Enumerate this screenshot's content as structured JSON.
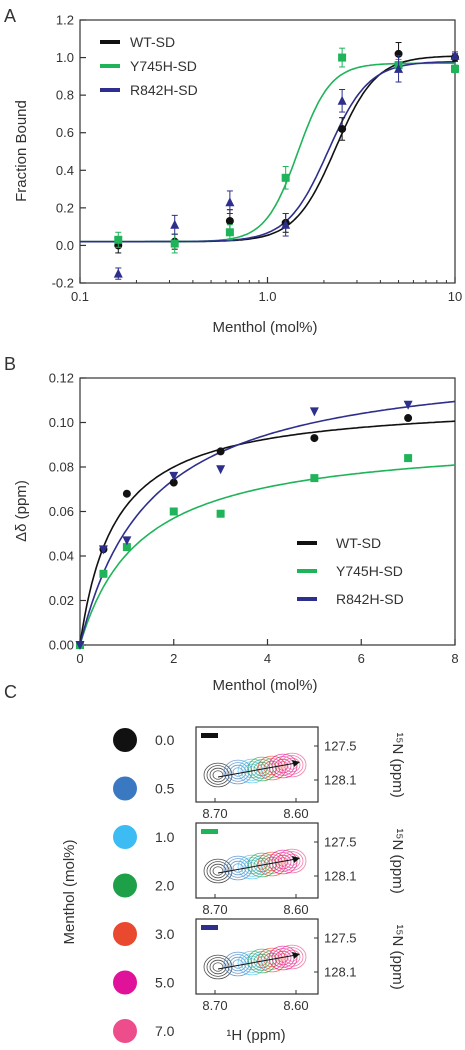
{
  "panels": {
    "a": "A",
    "b": "B",
    "c": "C"
  },
  "colors": {
    "wt": "#111111",
    "y745h": "#1fb35a",
    "r842h": "#2e2e8c"
  },
  "chart_data": [
    {
      "type": "scatter",
      "panel": "A",
      "xlabel": "Menthol (mol%)",
      "ylabel": "Fraction Bound",
      "x_scale": "log",
      "xlim": [
        0.1,
        10
      ],
      "ylim": [
        -0.2,
        1.2
      ],
      "x_ticks": [
        "0.1",
        "1.0",
        "10"
      ],
      "y_ticks": [
        "-0.2",
        "0.0",
        "0.2",
        "0.4",
        "0.6",
        "0.8",
        "1.0",
        "1.2"
      ],
      "legend_position": "top-left",
      "series": [
        {
          "name": "WT-SD",
          "color": "#111111",
          "marker": "circle",
          "x": [
            0.16,
            0.32,
            0.63,
            1.25,
            2.5,
            5.0,
            10.0
          ],
          "y": [
            0.0,
            0.02,
            0.13,
            0.12,
            0.62,
            1.02,
            1.0
          ],
          "err": [
            0.04,
            0.04,
            0.06,
            0.05,
            0.06,
            0.06,
            0.02
          ],
          "fit": {
            "bottom": 0.02,
            "top": 1.01,
            "ec50": 2.3,
            "hill": 4
          }
        },
        {
          "name": "Y745H-SD",
          "color": "#1fb35a",
          "marker": "square",
          "x": [
            0.16,
            0.32,
            0.63,
            1.25,
            2.5,
            5.0,
            10.0
          ],
          "y": [
            0.03,
            0.01,
            0.07,
            0.36,
            1.0,
            0.96,
            0.94
          ],
          "err": [
            0.04,
            0.05,
            0.04,
            0.06,
            0.05,
            0.03,
            0.02
          ],
          "fit": {
            "bottom": 0.02,
            "top": 0.97,
            "ec50": 1.45,
            "hill": 5
          }
        },
        {
          "name": "R842H-SD",
          "color": "#2e2e8c",
          "marker": "triangle",
          "x": [
            0.16,
            0.32,
            0.63,
            1.25,
            2.5,
            5.0,
            10.0
          ],
          "y": [
            -0.15,
            0.11,
            0.23,
            0.11,
            0.77,
            0.94,
            1.01
          ],
          "err": [
            0.03,
            0.05,
            0.06,
            0.06,
            0.06,
            0.07,
            0.02
          ],
          "fit": {
            "bottom": 0.02,
            "top": 0.98,
            "ec50": 2.1,
            "hill": 4
          }
        }
      ]
    },
    {
      "type": "scatter",
      "panel": "B",
      "xlabel": "Menthol (mol%)",
      "ylabel": "Δδ (ppm)",
      "xlim": [
        0,
        8
      ],
      "ylim": [
        0,
        0.12
      ],
      "x_ticks": [
        "0",
        "2",
        "4",
        "6",
        "8"
      ],
      "y_ticks": [
        "0.00",
        "0.02",
        "0.04",
        "0.06",
        "0.08",
        "0.10",
        "0.12"
      ],
      "legend_position": "bottom-right",
      "series": [
        {
          "name": "WT-SD",
          "color": "#111111",
          "marker": "circle",
          "x": [
            0,
            0.5,
            1,
            2,
            3,
            5,
            7
          ],
          "y": [
            0,
            0.043,
            0.068,
            0.073,
            0.087,
            0.093,
            0.102
          ],
          "fit": {
            "bmax": 0.11,
            "kd": 0.75
          }
        },
        {
          "name": "Y745H-SD",
          "color": "#1fb35a",
          "marker": "square",
          "x": [
            0,
            0.5,
            1,
            2,
            3,
            5,
            7
          ],
          "y": [
            0,
            0.032,
            0.044,
            0.06,
            0.059,
            0.075,
            0.084
          ],
          "fit": {
            "bmax": 0.094,
            "kd": 1.3
          }
        },
        {
          "name": "R842H-SD",
          "color": "#2e2e8c",
          "marker": "triangle-down",
          "x": [
            0,
            0.5,
            1,
            2,
            3,
            5,
            7
          ],
          "y": [
            0,
            0.043,
            0.047,
            0.076,
            0.079,
            0.105,
            0.108
          ],
          "fit": {
            "bmax": 0.13,
            "kd": 1.5
          }
        }
      ]
    }
  ],
  "panel_c": {
    "legend_title": "Menthol (mol%)",
    "levels": [
      {
        "label": "0.0",
        "color": "#111111"
      },
      {
        "label": "0.5",
        "color": "#3a78c2"
      },
      {
        "label": "1.0",
        "color": "#3cbcf2"
      },
      {
        "label": "2.0",
        "color": "#1ea048"
      },
      {
        "label": "3.0",
        "color": "#e8492f"
      },
      {
        "label": "5.0",
        "color": "#e0129a"
      },
      {
        "label": "7.0",
        "color": "#ee4d8c"
      }
    ],
    "x_ticks": [
      "8.70",
      "8.60"
    ],
    "y_ticks": [
      "127.5",
      "128.1"
    ],
    "y_axis_label": "¹⁵N (ppm)",
    "x_axis_label": "¹H (ppm)",
    "spectra": [
      {
        "variant_color": "#111111"
      },
      {
        "variant_color": "#1fb35a"
      },
      {
        "variant_color": "#2e2e8c"
      }
    ]
  }
}
